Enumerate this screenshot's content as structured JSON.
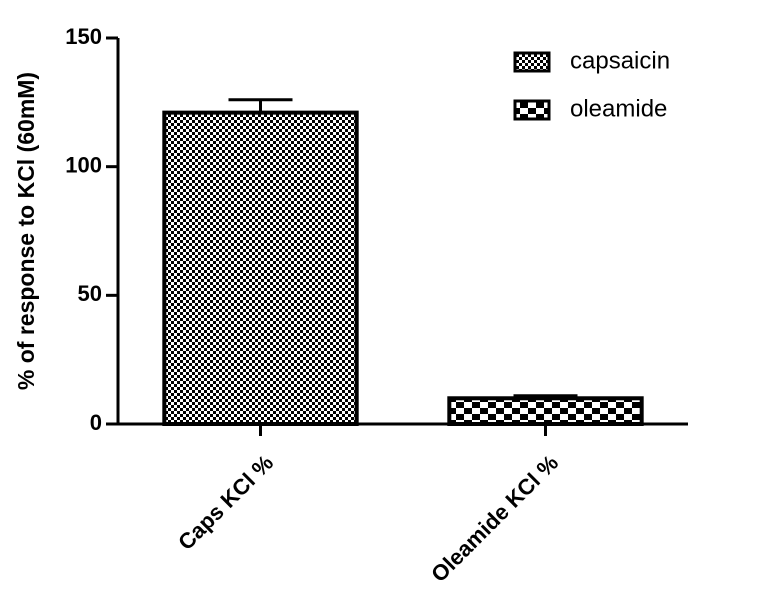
{
  "chart_data": {
    "type": "bar",
    "y_label": "% of response to KCl (60mM)",
    "categories": [
      "Caps KCl %",
      "Oleamide KCl %"
    ],
    "series": [
      {
        "name": "capsaicin",
        "color": "#000000",
        "values": [
          121,
          null
        ],
        "errors": [
          5,
          null
        ]
      },
      {
        "name": "oleamide",
        "color": "#000000",
        "values": [
          null,
          10
        ],
        "errors": [
          null,
          1
        ]
      }
    ],
    "ylim": [
      0,
      150
    ],
    "yticks": [
      0,
      50,
      100,
      150
    ],
    "grid": false,
    "legend": "top-right"
  }
}
